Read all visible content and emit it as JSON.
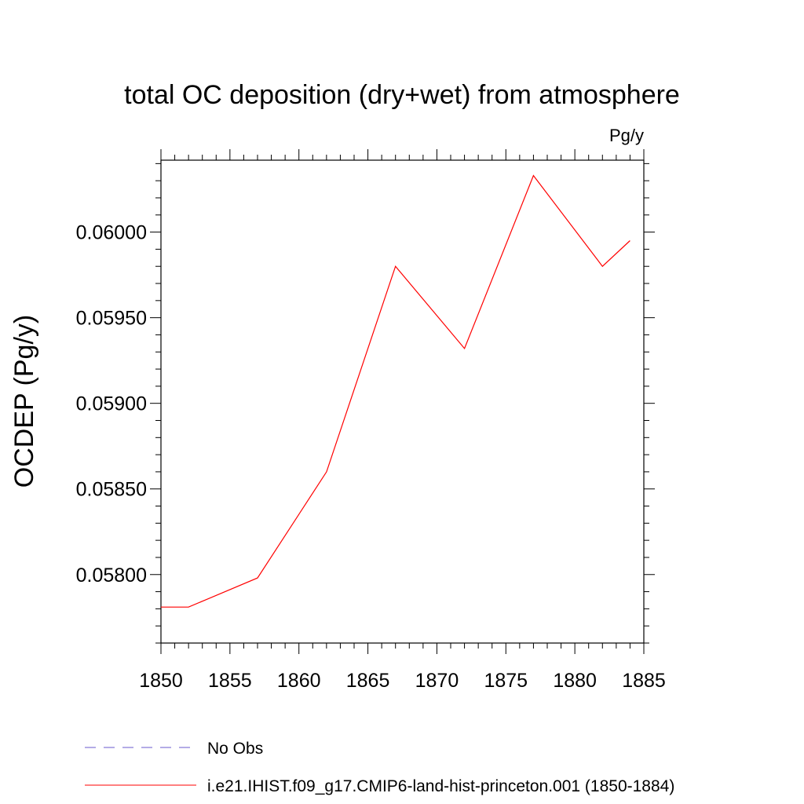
{
  "chart_data": {
    "type": "line",
    "title": "total OC deposition (dry+wet) from atmosphere",
    "units_label": "Pg/y",
    "ylabel": "OCDEP  (Pg/y)",
    "xlabel": "",
    "xlim": [
      1850,
      1885
    ],
    "ylim": [
      0.0576,
      0.06042
    ],
    "x_ticks": [
      "1850",
      "1855",
      "1860",
      "1865",
      "1870",
      "1875",
      "1880",
      "1885"
    ],
    "y_ticks": [
      "0.05800",
      "0.05850",
      "0.05900",
      "0.05950",
      "0.06000"
    ],
    "grid": false,
    "legend_position": "bottom",
    "series": [
      {
        "name": "No Obs",
        "color": "#6a5acd",
        "dash": "dashed",
        "x": [],
        "y": []
      },
      {
        "name": "i.e21.IHIST.f09_g17.CMIP6-land-hist-princeton.001 (1850-1884)",
        "color": "#ff0000",
        "dash": "solid",
        "x": [
          1850,
          1852,
          1857,
          1862,
          1867,
          1872,
          1877,
          1882,
          1884
        ],
        "y": [
          0.05781,
          0.05781,
          0.05798,
          0.0586,
          0.0598,
          0.05932,
          0.06033,
          0.0598,
          0.05995
        ]
      }
    ]
  }
}
